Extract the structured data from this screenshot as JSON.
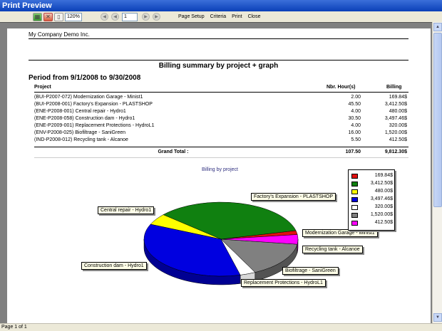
{
  "window": {
    "title": "Print Preview"
  },
  "toolbar": {
    "zoom": "120%",
    "page": "1",
    "page_setup": "Page Setup",
    "criteria": "Criteria",
    "print": "Print",
    "close": "Close"
  },
  "status": {
    "text": "Page 1 of 1"
  },
  "report": {
    "company": "My Company Demo Inc.",
    "title": "Billing summary by project + graph",
    "period": "Period from 9/1/2008 to 9/30/2008",
    "columns": {
      "project": "Project",
      "hours": "Nbr. Hour(s)",
      "billing": "Billing"
    },
    "rows": [
      {
        "project": "(BUI-P2007-072) Modernization Garage - Minist1",
        "hours": "2.00",
        "billing": "169.84$"
      },
      {
        "project": "(BUI-P2008-001) Factory's Expansion - PLASTSHOP",
        "hours": "45.50",
        "billing": "3,412.50$"
      },
      {
        "project": "(ENE-P2008-001) Central repair - Hydro1",
        "hours": "4.00",
        "billing": "480.00$"
      },
      {
        "project": "(ENE-P2008-058) Construction dam - Hydro1",
        "hours": "30.50",
        "billing": "3,497.46$"
      },
      {
        "project": "(ENE-P2009-001) Replacement Protections - HydroL1",
        "hours": "4.00",
        "billing": "320.00$"
      },
      {
        "project": "(ENV-P2008-025) Biofiltrage - SaniGreen",
        "hours": "16.00",
        "billing": "1,520.00$"
      },
      {
        "project": "(IND-P2008-012) Recycling tank - Alcanoe",
        "hours": "5.50",
        "billing": "412.50$"
      }
    ],
    "total": {
      "label": "Grand Total :",
      "hours": "107.50",
      "billing": "9,812.30$"
    }
  },
  "chart_data": {
    "type": "pie",
    "title": "Billing by project",
    "categories": [
      "Modernization Garage - Minist1",
      "Factory's Expansion - PLASTSHOP",
      "Central repair - Hydro1",
      "Construction dam - Hydro1",
      "Replacement Protections - HydroL1",
      "Biofiltrage - SaniGreen",
      "Recycling tank - Alcanoe"
    ],
    "values": [
      169.84,
      3412.5,
      480.0,
      3497.46,
      320.0,
      1520.0,
      412.5
    ],
    "legend_labels": [
      "169.84$",
      "3,412.50$",
      "480.00$",
      "3,497.46$",
      "320.00$",
      "1,520.00$",
      "412.50$"
    ],
    "colors": [
      "#e01010",
      "#108010",
      "#ffff00",
      "#0000e0",
      "#ffffff",
      "#808080",
      "#ff00ff"
    ],
    "legend_position": "top-right"
  }
}
